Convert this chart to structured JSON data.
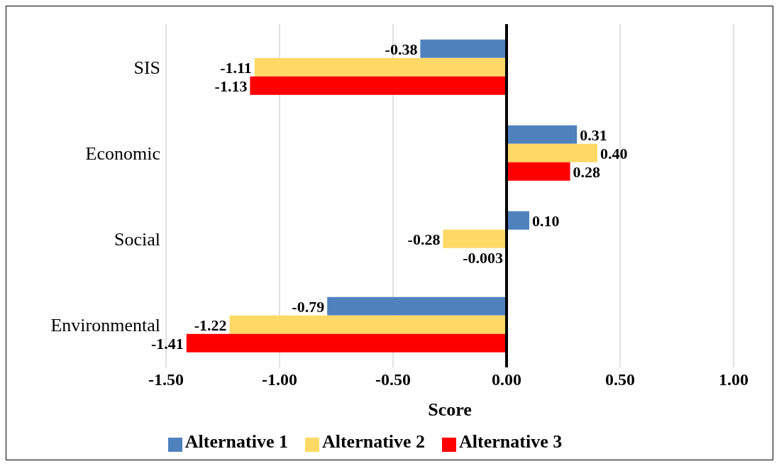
{
  "chart_data": {
    "type": "bar",
    "orientation": "horizontal",
    "xlabel": "Score",
    "categories": [
      "SIS",
      "Economic",
      "Social",
      "Environmental"
    ],
    "series": [
      {
        "name": "Alternative 1",
        "color": "#4f81bd",
        "values": [
          -0.38,
          0.31,
          0.1,
          -0.79
        ],
        "value_labels": [
          "-0.38",
          "0.31",
          "0.10",
          "-0.79"
        ]
      },
      {
        "name": "Alternative 2",
        "color": "#ffd966",
        "values": [
          -1.11,
          0.4,
          -0.28,
          -1.22
        ],
        "value_labels": [
          "-1.11",
          "0.40",
          "-0.28",
          "-1.22"
        ]
      },
      {
        "name": "Alternative 3",
        "color": "#ff0000",
        "values": [
          -1.13,
          0.28,
          -0.003,
          -1.41
        ],
        "value_labels": [
          "-1.13",
          "0.28",
          "-0.003",
          "-1.41"
        ]
      }
    ],
    "xlim": [
      -1.5,
      1.0
    ],
    "xticks": [
      {
        "value": -1.5,
        "label": "-1.50"
      },
      {
        "value": -1.0,
        "label": "-1.00"
      },
      {
        "value": -0.5,
        "label": "-0.50"
      },
      {
        "value": 0,
        "label": "0.00"
      },
      {
        "value": 0.5,
        "label": "0.50"
      },
      {
        "value": 1.0,
        "label": "1.00"
      }
    ],
    "ref_lines": [
      {
        "axis": "x",
        "value": 0,
        "color": "#000000"
      }
    ],
    "grid": "x",
    "legend": "bottom"
  }
}
